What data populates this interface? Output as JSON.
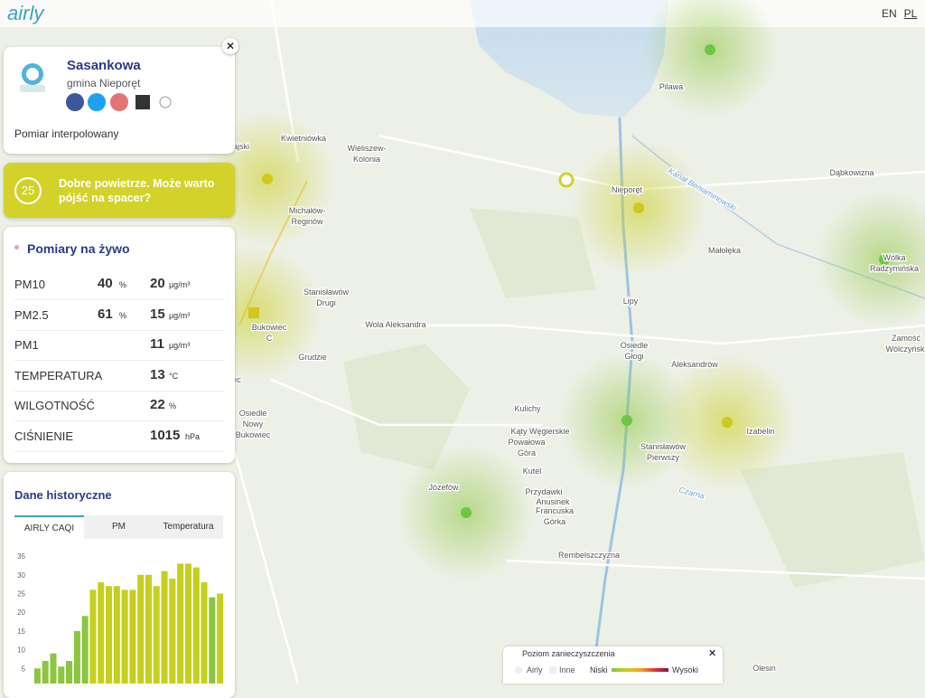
{
  "header": {
    "logo": "airly",
    "languages": [
      "EN",
      "PL"
    ]
  },
  "location": {
    "name": "Sasankowa",
    "gmina": "gmina Nieporęt",
    "measurement_type": "Pomiar interpolowany"
  },
  "caqi": {
    "value": 25,
    "message": "Dobre powietrze. Może warto pójść na spacer?"
  },
  "live": {
    "title": "Pomiary na żywo",
    "rows": [
      {
        "label": "PM10",
        "percent": 40,
        "percent_unit": "%",
        "value": 20,
        "unit": "µg/m³"
      },
      {
        "label": "PM2.5",
        "percent": 61,
        "percent_unit": "%",
        "value": 15,
        "unit": "µg/m³"
      },
      {
        "label": "PM1",
        "value": 11,
        "unit": "µg/m³"
      },
      {
        "label": "TEMPERATURA",
        "value": 13,
        "unit": "°C"
      },
      {
        "label": "WILGOTNOŚĆ",
        "value": 22,
        "unit": "%"
      },
      {
        "label": "CIŚNIENIE",
        "value": 1015,
        "unit": "hPa"
      }
    ]
  },
  "history": {
    "title": "Dane historyczne",
    "tabs": [
      "AIRLY CAQI",
      "PM",
      "Temperatura"
    ],
    "chart_data": {
      "type": "bar",
      "values": [
        5,
        7,
        9,
        5.5,
        7,
        15,
        19,
        26,
        28,
        27,
        27,
        26,
        26,
        30,
        30,
        27,
        31,
        29,
        33,
        33,
        32,
        28,
        24,
        25
      ],
      "colors": [
        "#8cc63f",
        "#8cc63f",
        "#8cc63f",
        "#8cc63f",
        "#8cc63f",
        "#8cc63f",
        "#8cc63f",
        "#c6cf1c",
        "#c6cf1c",
        "#c6cf1c",
        "#c6cf1c",
        "#c6cf1c",
        "#c6cf1c",
        "#c6cf1c",
        "#c6cf1c",
        "#c6cf1c",
        "#c6cf1c",
        "#c6cf1c",
        "#c6cf1c",
        "#c6cf1c",
        "#c6cf1c",
        "#c6cf1c",
        "#8cc63f",
        "#c6cf1c"
      ],
      "ylim": [
        0,
        37
      ],
      "yticks": [
        5,
        10,
        15,
        20,
        25,
        30,
        35
      ],
      "grid": false
    }
  },
  "map": {
    "places": [
      [
        "ajski"
      ],
      [
        "Kwietniówka"
      ],
      [
        "Wieliszew-",
        "Kolonia"
      ],
      [
        "Michałów-",
        "Reginów"
      ],
      [
        "Stanisławów",
        "Drugi"
      ],
      [
        "Wola Aleksandra"
      ],
      [
        "Bukowiec",
        "C"
      ],
      [
        "Grudzie"
      ],
      [
        "ec"
      ],
      [
        "Osiedle",
        "Nowy",
        "Bukowiec"
      ],
      [
        "Kulichy"
      ],
      [
        "Kąty Węgierskie"
      ],
      [
        "Powałowa",
        "Góra"
      ],
      [
        "Kutel"
      ],
      [
        "Przydawki"
      ],
      [
        "Anusinek"
      ],
      [
        "Francuska",
        "Górka"
      ],
      [
        "Józefów"
      ],
      [
        "Rembelszczyzna"
      ],
      [
        "Nieporęt"
      ],
      [
        "Pilawa"
      ],
      [
        "Dąbkowizna"
      ],
      [
        "Małołęka"
      ],
      [
        "Lipy"
      ],
      [
        "Osiedle",
        "Głogi"
      ],
      [
        "Aleksandrów"
      ],
      [
        "Stanisławów",
        "Pierwszy"
      ],
      [
        "Izabelin"
      ],
      [
        "Wólka",
        "Radzymińska"
      ],
      [
        "Zamość",
        "Wólczyński"
      ],
      [
        "Olesin"
      ],
      [
        "Kanał Beniaminowski"
      ],
      [
        "Czarna"
      ]
    ]
  },
  "legend": {
    "title": "Poziom zanieczyszczenia",
    "items": [
      "Airly",
      "Inne"
    ],
    "low": "Niski",
    "high": "Wysoki"
  }
}
